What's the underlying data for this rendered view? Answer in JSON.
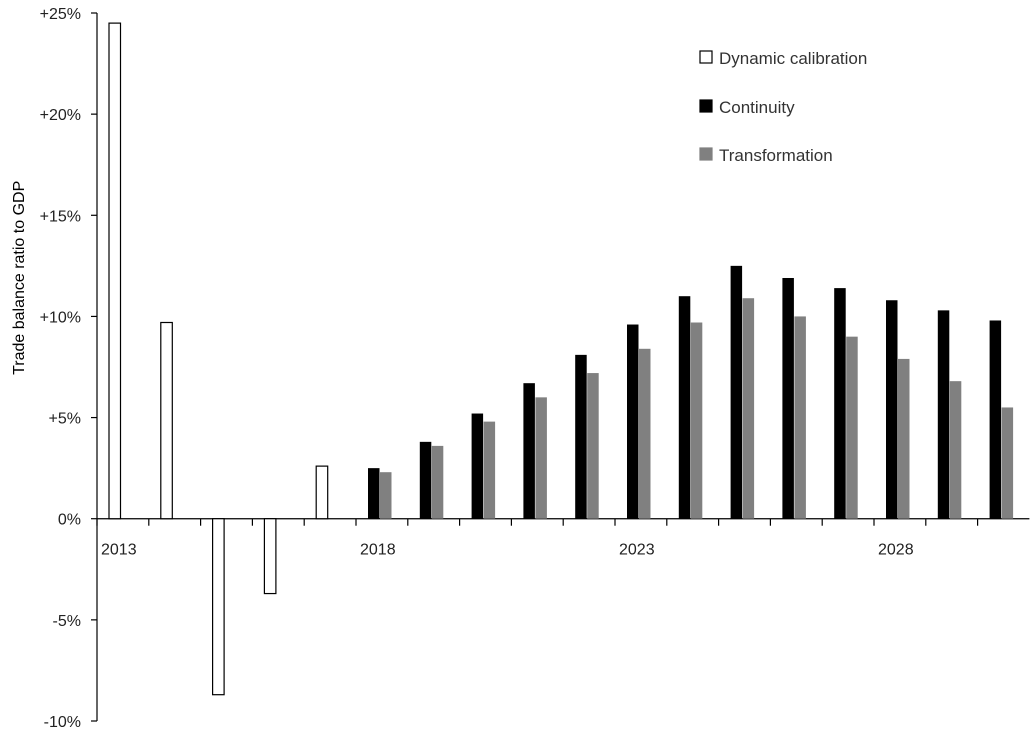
{
  "chart_data": {
    "type": "bar",
    "title": "",
    "xlabel": "",
    "ylabel": "Trade balance ratio to GDP",
    "ylim": [
      -10,
      25
    ],
    "yticks": [
      -10,
      -5,
      0,
      5,
      10,
      15,
      20,
      25
    ],
    "ytick_labels": [
      "-10%",
      "-5%",
      "0%",
      "+5%",
      "+10%",
      "+15%",
      "+20%",
      "+25%"
    ],
    "x": [
      2013,
      2014,
      2015,
      2016,
      2017,
      2018,
      2019,
      2020,
      2021,
      2022,
      2023,
      2024,
      2025,
      2026,
      2027,
      2028,
      2029,
      2030
    ],
    "xtick_labels": [
      {
        "year": 2013,
        "label": "2013"
      },
      {
        "year": 2018,
        "label": "2018"
      },
      {
        "year": 2023,
        "label": "2023"
      },
      {
        "year": 2028,
        "label": "2028"
      }
    ],
    "grid": false,
    "legend_position": "top-right",
    "series": [
      {
        "name": "Dynamic calibration",
        "color": "#ffffff",
        "stroke": "#000000",
        "values": [
          24.5,
          9.7,
          -8.7,
          -3.7,
          2.6,
          null,
          null,
          null,
          null,
          null,
          null,
          null,
          null,
          null,
          null,
          null,
          null,
          null
        ]
      },
      {
        "name": "Continuity",
        "color": "#000000",
        "stroke": "#000000",
        "values": [
          null,
          null,
          null,
          null,
          null,
          2.5,
          3.8,
          5.2,
          6.7,
          8.1,
          9.6,
          11.0,
          12.5,
          11.9,
          11.4,
          10.8,
          10.3,
          9.8
        ]
      },
      {
        "name": "Transformation",
        "color": "#808080",
        "stroke": "#808080",
        "values": [
          null,
          null,
          null,
          null,
          null,
          2.3,
          3.6,
          4.8,
          6.0,
          7.2,
          8.4,
          9.7,
          10.9,
          10.0,
          9.0,
          7.9,
          6.8,
          5.5
        ]
      }
    ]
  }
}
